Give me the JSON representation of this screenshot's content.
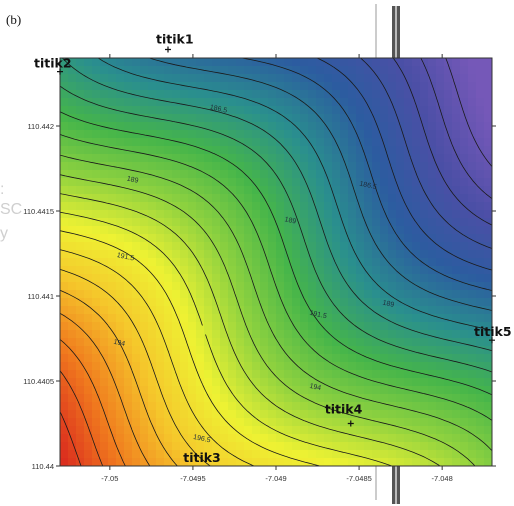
{
  "panel_label": "(b)",
  "ghost_text": [
    ":",
    "SC",
    "y"
  ],
  "chart_data": {
    "type": "contour",
    "title": "",
    "xlabel": "",
    "ylabel": "",
    "xlim": [
      -7.0503,
      -7.0477
    ],
    "ylim": [
      110.44,
      110.4424
    ],
    "x_ticks": [
      {
        "value": -7.05,
        "label": "-7.05"
      },
      {
        "value": -7.0495,
        "label": "-7.0495"
      },
      {
        "value": -7.049,
        "label": "-7.049"
      },
      {
        "value": -7.0485,
        "label": "-7.0485"
      },
      {
        "value": -7.048,
        "label": "-7.048"
      }
    ],
    "y_ticks": [
      {
        "value": 110.442,
        "label": "110.442"
      },
      {
        "value": 110.4415,
        "label": "110.4415"
      },
      {
        "value": 110.441,
        "label": "110.441"
      },
      {
        "value": 110.4405,
        "label": "110.4405"
      },
      {
        "value": 110.44,
        "label": "110.44"
      }
    ],
    "value_range": [
      185,
      197.5
    ],
    "contour_interval": 0.5,
    "contour_labels": [
      {
        "text": "186.5",
        "x": -7.0494,
        "y": 110.4421
      },
      {
        "text": "186.5",
        "x": -7.0485,
        "y": 110.44165
      },
      {
        "text": "189",
        "x": -7.0499,
        "y": 110.44168
      },
      {
        "text": "189",
        "x": -7.04895,
        "y": 110.44144
      },
      {
        "text": "189",
        "x": -7.04836,
        "y": 110.44095
      },
      {
        "text": "191.5",
        "x": -7.04996,
        "y": 110.44123
      },
      {
        "text": "191.5",
        "x": -7.0488,
        "y": 110.44089
      },
      {
        "text": "194",
        "x": -7.04998,
        "y": 110.44072
      },
      {
        "text": "194",
        "x": -7.0488,
        "y": 110.44046
      },
      {
        "text": "196.5",
        "x": -7.0495,
        "y": 110.44016
      }
    ],
    "points": [
      {
        "name": "titik1",
        "x": -7.04965,
        "y": 110.44245
      },
      {
        "name": "titik2",
        "x": -7.0503,
        "y": 110.44232
      },
      {
        "name": "titik3",
        "x": -7.04945,
        "y": 110.44
      },
      {
        "name": "titik4",
        "x": -7.04855,
        "y": 110.44025
      },
      {
        "name": "titik5",
        "x": -7.0477,
        "y": 110.44074
      }
    ],
    "colormap": [
      "#d9261e",
      "#f07a1e",
      "#f5c62b",
      "#eef233",
      "#8fd23f",
      "#45b54a",
      "#2a8f8e",
      "#2c5ca0",
      "#4b4fa6",
      "#7558b8"
    ]
  }
}
